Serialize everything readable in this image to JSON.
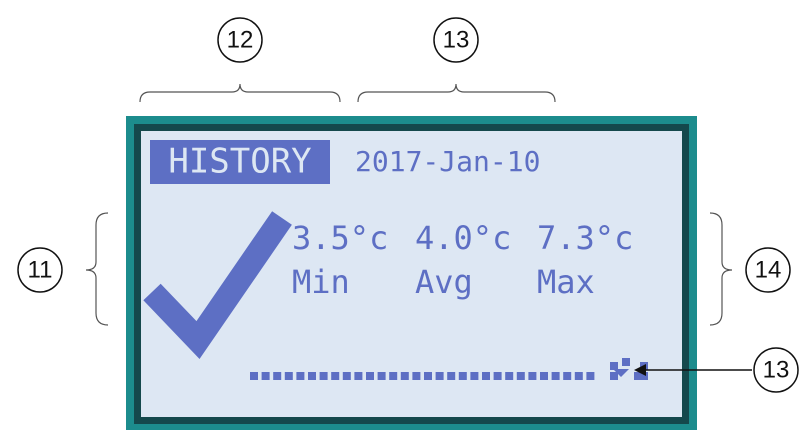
{
  "callouts": [
    {
      "label": "12"
    },
    {
      "label": "13"
    },
    {
      "label": "11"
    },
    {
      "label": "14"
    },
    {
      "label": "13"
    }
  ],
  "screen": {
    "mode": "HISTORY",
    "date": "2017-Jan-10",
    "readings": [
      {
        "value": "3.5°c",
        "label": "Min"
      },
      {
        "value": "4.0°c",
        "label": "Avg"
      },
      {
        "value": "7.3°c",
        "label": "Max"
      }
    ]
  }
}
